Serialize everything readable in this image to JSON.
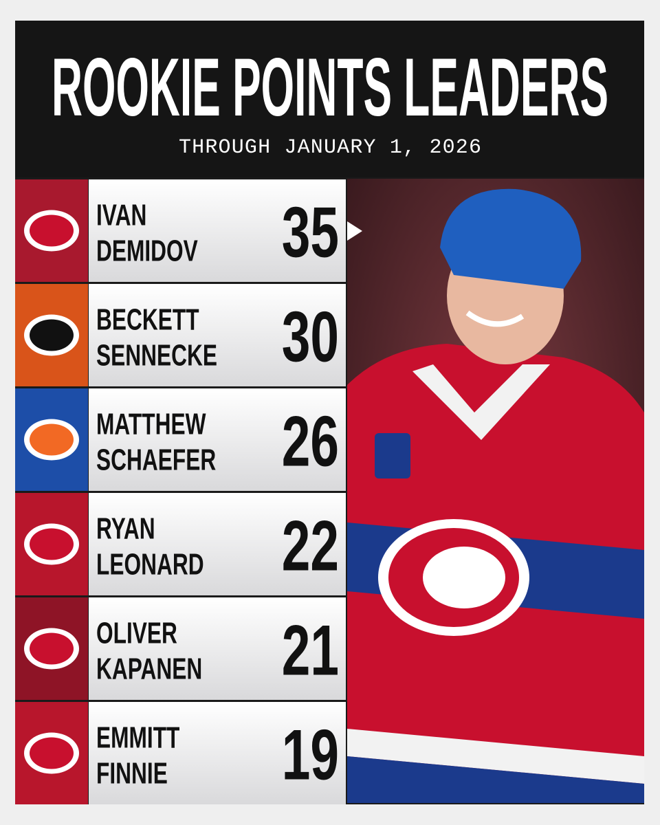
{
  "header": {
    "title": "ROOKIE POINTS LEADERS",
    "subtitle": "THROUGH JANUARY 1, 2026"
  },
  "rows": [
    {
      "first": "IVAN",
      "last": "DEMIDOV",
      "points": 35
    },
    {
      "first": "BECKETT",
      "last": "SENNECKE",
      "points": 30
    },
    {
      "first": "MATTHEW",
      "last": "SCHAEFER",
      "points": 26
    },
    {
      "first": "RYAN",
      "last": "LEONARD",
      "points": 22
    },
    {
      "first": "OLIVER",
      "last": "KAPANEN",
      "points": 21
    },
    {
      "first": "EMMITT",
      "last": "FINNIE",
      "points": 19
    }
  ]
}
